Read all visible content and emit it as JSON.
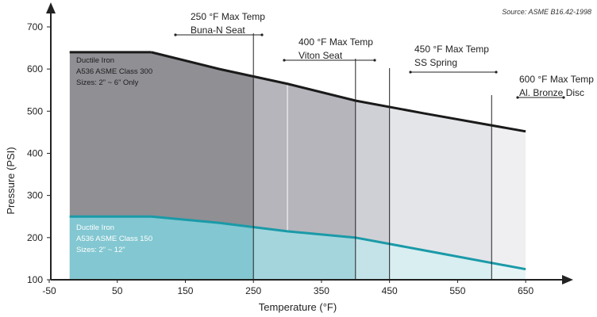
{
  "chart_data": {
    "type": "area",
    "source_note": "Source: ASME B16.42-1998",
    "xlabel": "Temperature (°F)",
    "ylabel": "Pressure (PSI)",
    "x_ticks": [
      -50,
      50,
      150,
      250,
      350,
      450,
      550,
      650
    ],
    "y_ticks": [
      100,
      200,
      300,
      400,
      500,
      600,
      700
    ],
    "xlim": [
      -50,
      700
    ],
    "ylim": [
      100,
      730
    ],
    "grid": false,
    "series": [
      {
        "name": "Ductile Iron A536 ASME Class 300",
        "x": [
          -20,
          100,
          200,
          300,
          400,
          500,
          650
        ],
        "y": [
          640,
          640,
          600,
          565,
          525,
          495,
          452
        ],
        "color": "#1a1a1a",
        "fill": "#8f8f94"
      },
      {
        "name": "Ductile Iron A536 ASME Class 150",
        "x": [
          -20,
          100,
          200,
          300,
          400,
          500,
          650
        ],
        "y": [
          250,
          250,
          235,
          215,
          200,
          170,
          125
        ],
        "color": "#1a9aa8",
        "fill": "#a4d5dc"
      }
    ],
    "region_labels": [
      {
        "lines": [
          "Ductile Iron",
          "A536 ASME Class 300",
          "Sizes:  2” ~ 6” Only"
        ],
        "color": "#1e1e1e"
      },
      {
        "lines": [
          "Ductile Iron",
          "A536  ASME Class 150",
          "Sizes:  2” ~ 12”"
        ],
        "color": "#ffffff"
      }
    ],
    "temperature_limits": [
      {
        "x": 250,
        "lines": [
          "250 °F Max Temp",
          "Buna-N Seat"
        ]
      },
      {
        "x": 400,
        "lines": [
          "400 °F Max Temp",
          "Viton Seat"
        ]
      },
      {
        "x": 450,
        "lines": [
          "450 °F Max Temp",
          "SS Spring"
        ]
      },
      {
        "x": 600,
        "lines": [
          "600 °F Max Temp",
          "Al. Bronze Disc"
        ]
      }
    ]
  }
}
